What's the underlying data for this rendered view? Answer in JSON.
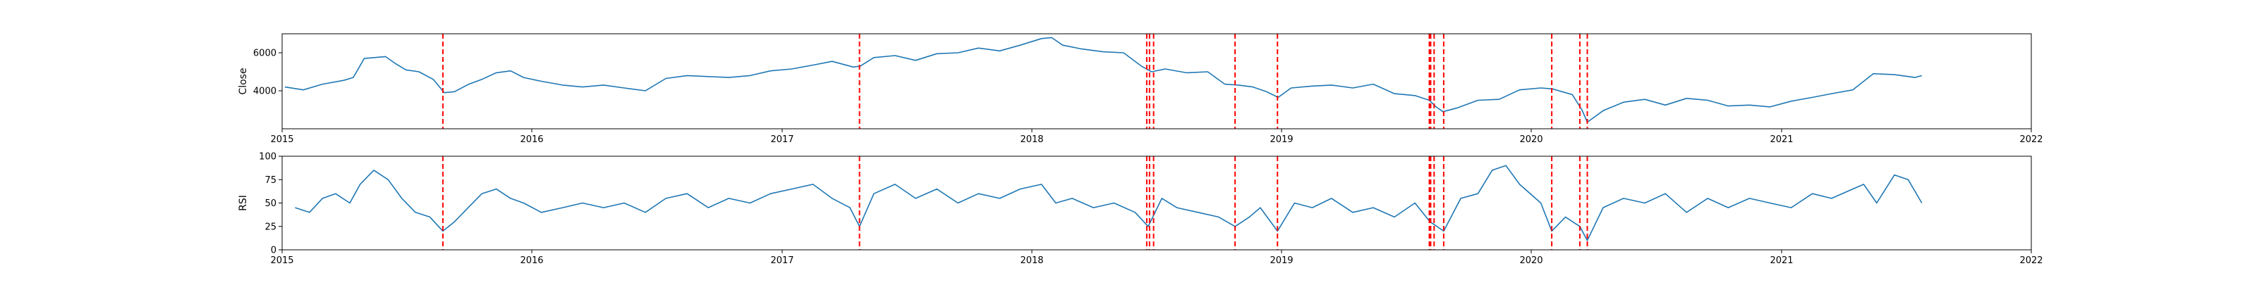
{
  "chart_data": [
    {
      "type": "line",
      "ylabel": "Close",
      "ylim": [
        2000,
        7000
      ],
      "yticks": [
        4000,
        6000
      ],
      "ytick_labels": [
        "4000",
        "6000"
      ],
      "xlim": [
        "2015-01-01",
        "2022-01-01"
      ],
      "xticks": [
        "2015-01-01",
        "2016-01-01",
        "2017-01-01",
        "2018-01-01",
        "2019-01-01",
        "2020-01-01",
        "2021-01-01",
        "2022-01-01"
      ],
      "xtick_labels": [
        "2015",
        "2016",
        "2017",
        "2018",
        "2019",
        "2020",
        "2021",
        "2022"
      ],
      "series_color": "#1f77b4",
      "series": [
        {
          "x": [
            "2015-01-05",
            "2015-02-01",
            "2015-03-01",
            "2015-04-01",
            "2015-04-15",
            "2015-05-01",
            "2015-06-01",
            "2015-06-15",
            "2015-07-01",
            "2015-07-20",
            "2015-08-10",
            "2015-08-26",
            "2015-09-10",
            "2015-10-01",
            "2015-10-20",
            "2015-11-10",
            "2015-12-01",
            "2015-12-20",
            "2016-01-15",
            "2016-02-15",
            "2016-03-15",
            "2016-04-15",
            "2016-05-15",
            "2016-06-15",
            "2016-07-15",
            "2016-08-15",
            "2016-09-15",
            "2016-10-15",
            "2016-11-15",
            "2016-12-15",
            "2017-01-15",
            "2017-02-15",
            "2017-03-15",
            "2017-04-15",
            "2017-04-25",
            "2017-05-15",
            "2017-06-15",
            "2017-07-15",
            "2017-08-15",
            "2017-09-15",
            "2017-10-15",
            "2017-11-15",
            "2017-12-15",
            "2018-01-15",
            "2018-01-30",
            "2018-02-15",
            "2018-03-15",
            "2018-04-15",
            "2018-05-15",
            "2018-06-10",
            "2018-06-25",
            "2018-07-15",
            "2018-08-15",
            "2018-09-15",
            "2018-10-10",
            "2018-10-30",
            "2018-11-20",
            "2018-12-10",
            "2018-12-27",
            "2019-01-15",
            "2019-02-15",
            "2019-03-15",
            "2019-04-15",
            "2019-05-15",
            "2019-06-15",
            "2019-07-15",
            "2019-08-05",
            "2019-08-15",
            "2019-08-25",
            "2019-09-15",
            "2019-10-15",
            "2019-11-15",
            "2019-12-15",
            "2020-01-15",
            "2020-02-01",
            "2020-02-15",
            "2020-03-01",
            "2020-03-15",
            "2020-03-23",
            "2020-04-15",
            "2020-05-15",
            "2020-06-15",
            "2020-07-15",
            "2020-08-15",
            "2020-09-15",
            "2020-10-15",
            "2020-11-15",
            "2020-12-15",
            "2021-01-15",
            "2021-02-15",
            "2021-03-15",
            "2021-04-15",
            "2021-05-15",
            "2021-06-15",
            "2021-07-15",
            "2021-07-25"
          ],
          "y": [
            4200,
            4050,
            4350,
            4550,
            4700,
            5700,
            5800,
            5450,
            5100,
            5000,
            4600,
            3900,
            3950,
            4350,
            4600,
            4950,
            5050,
            4700,
            4500,
            4300,
            4200,
            4300,
            4150,
            4000,
            4650,
            4800,
            4750,
            4700,
            4800,
            5050,
            5150,
            5350,
            5550,
            5250,
            5300,
            5750,
            5850,
            5600,
            5950,
            6000,
            6250,
            6100,
            6400,
            6750,
            6800,
            6400,
            6200,
            6050,
            6000,
            5300,
            5000,
            5150,
            4950,
            5000,
            4350,
            4300,
            4200,
            3950,
            3650,
            4150,
            4250,
            4300,
            4150,
            4350,
            3850,
            3750,
            3500,
            3150,
            2900,
            3100,
            3500,
            3550,
            4050,
            4150,
            4100,
            3950,
            3800,
            3000,
            2350,
            2950,
            3400,
            3550,
            3250,
            3600,
            3500,
            3200,
            3250,
            3150,
            3450,
            3650,
            3850,
            4050,
            4900,
            4850,
            4700,
            4800
          ]
        }
      ],
      "signal_color": "#ff0000",
      "vlines": [
        "2015-08-24",
        "2017-04-24",
        "2018-06-18",
        "2018-06-22",
        "2018-06-28",
        "2018-10-25",
        "2018-12-26",
        "2019-08-05",
        "2019-08-07",
        "2019-08-12",
        "2019-08-26",
        "2020-01-31",
        "2020-03-12",
        "2020-03-23"
      ]
    },
    {
      "type": "line",
      "ylabel": "RSI",
      "ylim": [
        0,
        100
      ],
      "yticks": [
        0,
        25,
        50,
        75,
        100
      ],
      "ytick_labels": [
        "0",
        "25",
        "50",
        "75",
        "100"
      ],
      "xlim": [
        "2015-01-01",
        "2022-01-01"
      ],
      "xticks": [
        "2015-01-01",
        "2016-01-01",
        "2017-01-01",
        "2018-01-01",
        "2019-01-01",
        "2020-01-01",
        "2021-01-01",
        "2022-01-01"
      ],
      "xtick_labels": [
        "2015",
        "2016",
        "2017",
        "2018",
        "2019",
        "2020",
        "2021",
        "2022"
      ],
      "series_color": "#1f77b4",
      "series": [
        {
          "x": [
            "2015-01-20",
            "2015-02-10",
            "2015-03-01",
            "2015-03-20",
            "2015-04-10",
            "2015-04-25",
            "2015-05-15",
            "2015-06-05",
            "2015-06-25",
            "2015-07-15",
            "2015-08-05",
            "2015-08-24",
            "2015-09-10",
            "2015-09-30",
            "2015-10-20",
            "2015-11-10",
            "2015-12-01",
            "2015-12-20",
            "2016-01-15",
            "2016-02-15",
            "2016-03-15",
            "2016-04-15",
            "2016-05-15",
            "2016-06-15",
            "2016-07-15",
            "2016-08-15",
            "2016-09-15",
            "2016-10-15",
            "2016-11-15",
            "2016-12-15",
            "2017-01-15",
            "2017-02-15",
            "2017-03-15",
            "2017-04-10",
            "2017-04-24",
            "2017-05-15",
            "2017-06-15",
            "2017-07-15",
            "2017-08-15",
            "2017-09-15",
            "2017-10-15",
            "2017-11-15",
            "2017-12-15",
            "2018-01-15",
            "2018-02-05",
            "2018-03-01",
            "2018-04-01",
            "2018-05-01",
            "2018-06-01",
            "2018-06-20",
            "2018-07-10",
            "2018-08-01",
            "2018-09-01",
            "2018-10-01",
            "2018-10-25",
            "2018-11-15",
            "2018-12-01",
            "2018-12-26",
            "2019-01-20",
            "2019-02-15",
            "2019-03-15",
            "2019-04-15",
            "2019-05-15",
            "2019-06-15",
            "2019-07-15",
            "2019-08-06",
            "2019-08-26",
            "2019-09-20",
            "2019-10-15",
            "2019-11-05",
            "2019-11-25",
            "2019-12-15",
            "2020-01-15",
            "2020-01-31",
            "2020-02-20",
            "2020-03-12",
            "2020-03-23",
            "2020-04-15",
            "2020-05-15",
            "2020-06-15",
            "2020-07-15",
            "2020-08-15",
            "2020-09-15",
            "2020-10-15",
            "2020-11-15",
            "2020-12-15",
            "2021-01-15",
            "2021-02-15",
            "2021-03-15",
            "2021-04-15",
            "2021-05-01",
            "2021-05-20",
            "2021-06-15",
            "2021-07-05",
            "2021-07-25"
          ],
          "y": [
            45,
            40,
            55,
            60,
            50,
            70,
            85,
            75,
            55,
            40,
            35,
            20,
            30,
            45,
            60,
            65,
            55,
            50,
            40,
            45,
            50,
            45,
            50,
            40,
            55,
            60,
            45,
            55,
            50,
            60,
            65,
            70,
            55,
            45,
            25,
            60,
            70,
            55,
            65,
            50,
            60,
            55,
            65,
            70,
            50,
            55,
            45,
            50,
            40,
            25,
            55,
            45,
            40,
            35,
            25,
            35,
            45,
            20,
            50,
            45,
            55,
            40,
            45,
            35,
            50,
            30,
            20,
            55,
            60,
            85,
            90,
            70,
            50,
            20,
            35,
            25,
            10,
            45,
            55,
            50,
            60,
            40,
            55,
            45,
            55,
            50,
            45,
            60,
            55,
            65,
            70,
            50,
            80,
            75,
            50
          ]
        }
      ],
      "signal_color": "#ff0000",
      "vlines": [
        "2015-08-24",
        "2017-04-24",
        "2018-06-18",
        "2018-06-22",
        "2018-06-28",
        "2018-10-25",
        "2018-12-26",
        "2019-08-05",
        "2019-08-07",
        "2019-08-12",
        "2019-08-26",
        "2020-01-31",
        "2020-03-12",
        "2020-03-23"
      ]
    }
  ]
}
